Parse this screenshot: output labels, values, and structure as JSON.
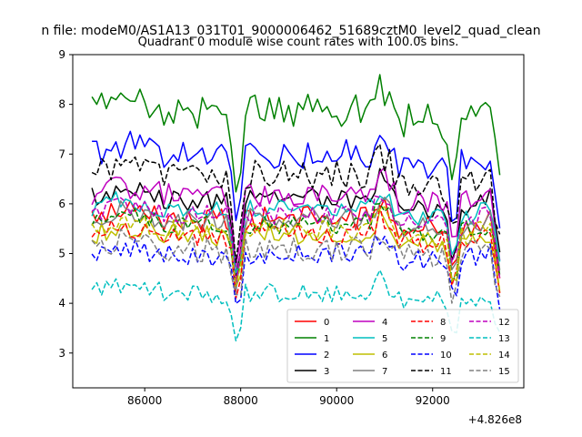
{
  "chart_data": {
    "type": "line",
    "suptitle": "n file: modeM0/AS1A13_031T01_9000006462_51689cztM0_level2_quad_clean",
    "title": "Quadrant 0 module wise count rates with 100.0s bins.",
    "xlabel": "",
    "ylabel": "",
    "x_offset_label": "+4.826e8",
    "xlim": [
      84500,
      93900
    ],
    "ylim": [
      2.3,
      9.0
    ],
    "x_ticks": [
      86000,
      88000,
      90000,
      92000
    ],
    "x_tick_labels": [
      "86000",
      "88000",
      "90000",
      "92000"
    ],
    "y_ticks": [
      3,
      4,
      5,
      6,
      7,
      8,
      9
    ],
    "y_tick_labels": [
      "3",
      "4",
      "5",
      "6",
      "7",
      "8",
      "9"
    ],
    "x_start": 84900,
    "x_step": 100,
    "grid": false,
    "legend_position": "lower-right",
    "legend_columns": 4,
    "anchors": [
      {
        "x": 84900,
        "mult": 1.0
      },
      {
        "x": 85500,
        "mult": 1.03
      },
      {
        "x": 86500,
        "mult": 1.0
      },
      {
        "x": 87700,
        "mult": 0.99
      },
      {
        "x": 87850,
        "mult": 0.9
      },
      {
        "x": 87930,
        "mult": 0.7
      },
      {
        "x": 88000,
        "mult": 0.85
      },
      {
        "x": 88100,
        "mult": 1.0
      },
      {
        "x": 90700,
        "mult": 1.0
      },
      {
        "x": 90900,
        "mult": 1.07
      },
      {
        "x": 91100,
        "mult": 1.03
      },
      {
        "x": 91300,
        "mult": 0.97
      },
      {
        "x": 92200,
        "mult": 0.97
      },
      {
        "x": 92350,
        "mult": 0.93
      },
      {
        "x": 92450,
        "mult": 0.72
      },
      {
        "x": 92550,
        "mult": 0.97
      },
      {
        "x": 93200,
        "mult": 1.0
      },
      {
        "x": 93400,
        "mult": 0.8
      }
    ],
    "series": [
      {
        "name": "0",
        "color": "#ff0000",
        "dash": "solid",
        "base": 5.7,
        "amp": 0.25
      },
      {
        "name": "1",
        "color": "#008000",
        "dash": "solid",
        "base": 7.9,
        "amp": 0.35
      },
      {
        "name": "2",
        "color": "#0000ff",
        "dash": "solid",
        "base": 7.0,
        "amp": 0.3
      },
      {
        "name": "3",
        "color": "#000000",
        "dash": "solid",
        "base": 6.1,
        "amp": 0.22
      },
      {
        "name": "4",
        "color": "#bf00bf",
        "dash": "solid",
        "base": 6.2,
        "amp": 0.25
      },
      {
        "name": "5",
        "color": "#00bfbf",
        "dash": "solid",
        "base": 5.9,
        "amp": 0.2
      },
      {
        "name": "6",
        "color": "#bfbf00",
        "dash": "solid",
        "base": 5.4,
        "amp": 0.22
      },
      {
        "name": "7",
        "color": "#808080",
        "dash": "solid",
        "base": 5.7,
        "amp": 0.22
      },
      {
        "name": "8",
        "color": "#ff0000",
        "dash": "dashed",
        "base": 5.4,
        "amp": 0.22
      },
      {
        "name": "9",
        "color": "#008000",
        "dash": "dashed",
        "base": 5.6,
        "amp": 0.2
      },
      {
        "name": "10",
        "color": "#0000ff",
        "dash": "dashed",
        "base": 5.0,
        "amp": 0.22
      },
      {
        "name": "11",
        "color": "#000000",
        "dash": "dashed",
        "base": 6.6,
        "amp": 0.3
      },
      {
        "name": "12",
        "color": "#bf00bf",
        "dash": "dashed",
        "base": 5.8,
        "amp": 0.22
      },
      {
        "name": "13",
        "color": "#00bfbf",
        "dash": "dashed",
        "base": 4.2,
        "amp": 0.2
      },
      {
        "name": "14",
        "color": "#bfbf00",
        "dash": "dashed",
        "base": 5.5,
        "amp": 0.2
      },
      {
        "name": "15",
        "color": "#808080",
        "dash": "dashed",
        "base": 5.1,
        "amp": 0.25
      }
    ]
  }
}
